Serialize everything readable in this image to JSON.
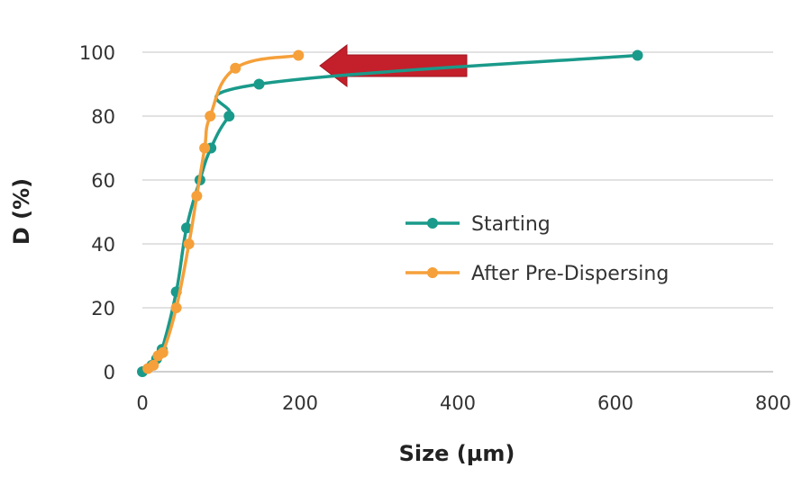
{
  "chart_data": {
    "type": "line",
    "xlabel": "Size (µm)",
    "ylabel": "D (%)",
    "xlim": [
      0,
      800
    ],
    "ylim": [
      0,
      100
    ],
    "xticks": [
      "0",
      "200",
      "400",
      "600",
      "800"
    ],
    "yticks": [
      "0",
      "20",
      "40",
      "60",
      "80",
      "100"
    ],
    "grid": "horizontal",
    "legend_position": "right-middle",
    "annotation": "red arrow pointing left from Starting curve toward After Pre-Dispersing curve near 95%",
    "series": [
      {
        "name": "Starting",
        "color": "#1a9a8a",
        "x": [
          0,
          12,
          18,
          25,
          43,
          56,
          73,
          87,
          110,
          148,
          628
        ],
        "y": [
          0,
          2,
          4,
          7,
          25,
          45,
          60,
          70,
          80,
          90,
          99
        ]
      },
      {
        "name": "After Pre-Dispersing",
        "color": "#f5a03a",
        "x": [
          7,
          14,
          20,
          26,
          43,
          59,
          69,
          79,
          86,
          118,
          198
        ],
        "y": [
          1,
          2,
          5,
          6,
          20,
          40,
          55,
          70,
          80,
          95,
          99
        ]
      }
    ]
  },
  "colors": {
    "grid": "#d9d9d9",
    "axis": "#bfbfbf",
    "arrow": "#c3202b",
    "arrow_edge": "#9e1620"
  }
}
